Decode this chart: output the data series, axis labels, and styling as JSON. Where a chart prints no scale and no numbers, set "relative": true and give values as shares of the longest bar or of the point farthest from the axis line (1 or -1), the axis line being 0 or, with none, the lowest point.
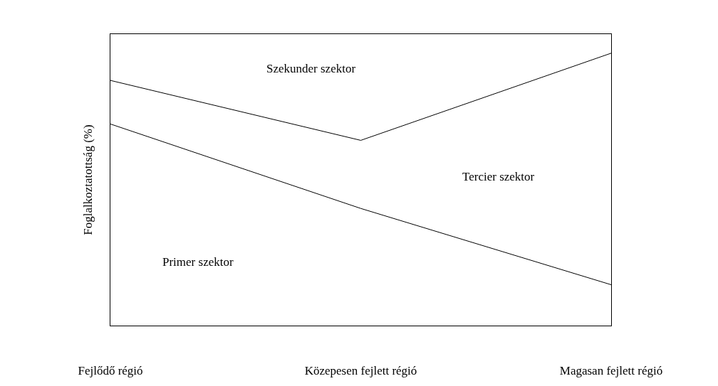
{
  "chart_data": {
    "type": "line",
    "relative": true,
    "ylabel": "Foglalkoztatottság (%)",
    "categories": [
      "Fejlődő régió",
      "Közepesen fejlett régió",
      "Magasan fejlett régió"
    ],
    "series": [
      {
        "color": "#000000",
        "values": [
          0.74,
          0.43,
          0.15
        ]
      },
      {
        "color": "#000000",
        "values": [
          0.9,
          0.68,
          1
        ]
      }
    ],
    "annotations": [
      "Szekunder szektor",
      "Tercier szektor",
      "Primer szektor"
    ],
    "marker": "none",
    "line_style": "solid"
  }
}
